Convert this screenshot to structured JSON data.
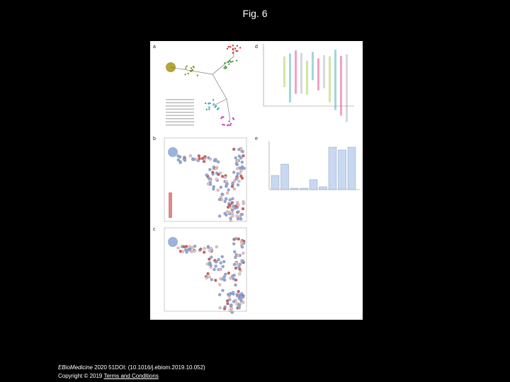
{
  "title": "Fig. 6",
  "figure": {
    "panels": [
      "a",
      "b",
      "c",
      "d",
      "e"
    ]
  },
  "footer": {
    "journal": "EBioMedicine",
    "citation": " 2020 51DOI: (10.1016/j.ebiom.2019.10.052)",
    "copyright": "Copyright © 2019 ",
    "link": "Terms and Conditions"
  }
}
